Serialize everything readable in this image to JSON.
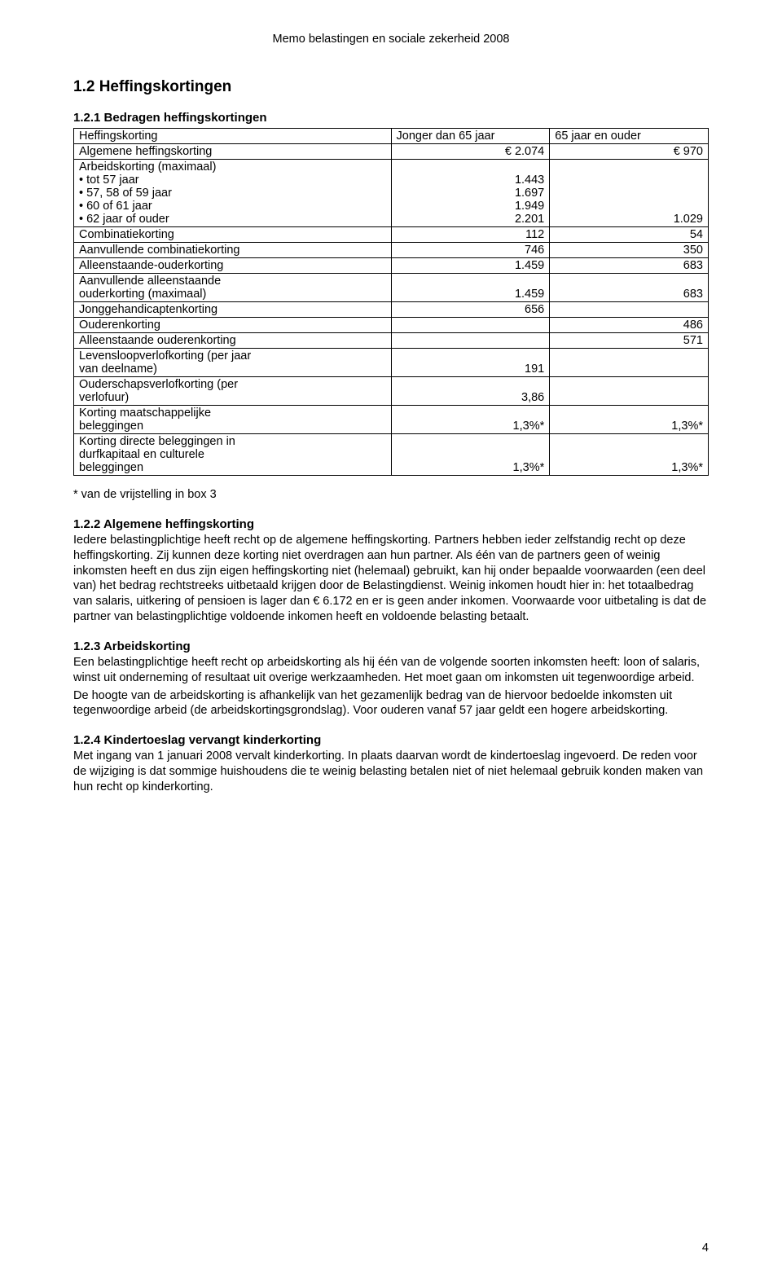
{
  "header": "Memo belastingen en sociale zekerheid 2008",
  "section_1_2": "1.2 Heffingskortingen",
  "section_1_2_1": "1.2.1 Bedragen heffingskortingen",
  "table": {
    "col0_header": "Heffingskorting",
    "col1_header": "Jonger dan 65 jaar",
    "col2_header": "65 jaar en ouder",
    "border_color": "#000000",
    "rows": [
      {
        "c0_lines": [
          "Algemene heffingskorting"
        ],
        "c1": "€ 2.074",
        "c2": "€ 970"
      },
      {
        "c0_lines": [
          "Arbeidskorting (maximaal)",
          "• tot 57 jaar",
          "• 57, 58 of 59 jaar",
          "• 60 of 61 jaar",
          "• 62 jaar of ouder"
        ],
        "c1_lines": [
          "",
          "1.443",
          "1.697",
          "1.949",
          "2.201"
        ],
        "c2_lines": [
          "",
          "",
          "",
          "",
          "1.029"
        ]
      },
      {
        "c0_lines": [
          "Combinatiekorting"
        ],
        "c1": "112",
        "c2": "54"
      },
      {
        "c0_lines": [
          "Aanvullende combinatiekorting"
        ],
        "c1": "746",
        "c2": "350"
      },
      {
        "c0_lines": [
          "Alleenstaande-ouderkorting"
        ],
        "c1": "1.459",
        "c2": "683"
      },
      {
        "c0_lines": [
          "Aanvullende alleenstaande",
          "ouderkorting (maximaal)"
        ],
        "c1_lines": [
          "",
          "1.459"
        ],
        "c2_lines": [
          "",
          "683"
        ]
      },
      {
        "c0_lines": [
          "Jonggehandicaptenkorting"
        ],
        "c1": "656",
        "c2": ""
      },
      {
        "c0_lines": [
          "Ouderenkorting"
        ],
        "c1": "",
        "c2": "486"
      },
      {
        "c0_lines": [
          "Alleenstaande ouderenkorting"
        ],
        "c1": "",
        "c2": "571"
      },
      {
        "c0_lines": [
          "Levensloopverlofkorting (per jaar",
          "van deelname)"
        ],
        "c1_lines": [
          "",
          "191"
        ],
        "c2": ""
      },
      {
        "c0_lines": [
          "Ouderschapsverlofkorting (per",
          "verlofuur)"
        ],
        "c1_lines": [
          "",
          "3,86"
        ],
        "c2": ""
      },
      {
        "c0_lines": [
          "Korting maatschappelijke",
          "beleggingen"
        ],
        "c1_lines": [
          "",
          "1,3%*"
        ],
        "c2_lines": [
          "",
          "1,3%*"
        ]
      },
      {
        "c0_lines": [
          "Korting directe beleggingen in",
          "durfkapitaal en culturele",
          "beleggingen"
        ],
        "c1_lines": [
          "",
          "",
          "1,3%*"
        ],
        "c2_lines": [
          "",
          "",
          "1,3%*"
        ]
      }
    ]
  },
  "footnote": "* van de vrijstelling in box 3",
  "s1_2_2": {
    "title": "1.2.2 Algemene heffingskorting",
    "body": "Iedere belastingplichtige heeft recht op de algemene heffingskorting. Partners hebben ieder zelfstandig recht op deze heffingskorting. Zij kunnen deze korting niet overdragen aan hun partner. Als één van de partners geen of weinig inkomsten heeft en dus zijn eigen heffingskorting niet (helemaal) gebruikt, kan hij onder bepaalde voorwaarden (een deel van) het bedrag rechtstreeks uitbetaald krijgen door de Belastingdienst. Weinig inkomen houdt hier in: het totaalbedrag van salaris, uitkering of pensioen is lager dan € 6.172 en er is geen ander inkomen. Voorwaarde voor uitbetaling is dat de partner van belastingplichtige voldoende inkomen heeft en voldoende belasting betaalt."
  },
  "s1_2_3": {
    "title": "1.2.3 Arbeidskorting",
    "body": "Een belastingplichtige heeft recht op arbeidskorting als hij één van de volgende soorten inkomsten heeft: loon of salaris, winst uit onderneming of resultaat uit overige werkzaamheden. Het moet gaan om inkomsten uit tegenwoordige arbeid.\nDe hoogte van de arbeidskorting is afhankelijk van het gezamenlijk bedrag van de hiervoor bedoelde inkomsten uit tegenwoordige arbeid (de arbeidskortingsgrondslag). Voor ouderen vanaf 57 jaar geldt een hogere arbeidskorting."
  },
  "s1_2_4": {
    "title": "1.2.4 Kindertoeslag vervangt kinderkorting",
    "body": "Met ingang van 1 januari 2008 vervalt kinderkorting. In plaats daarvan wordt de kindertoeslag ingevoerd. De reden voor de wijziging is dat sommige huishoudens die te weinig belasting betalen niet of niet helemaal gebruik konden maken van hun recht op kinderkorting."
  },
  "page_number": "4"
}
